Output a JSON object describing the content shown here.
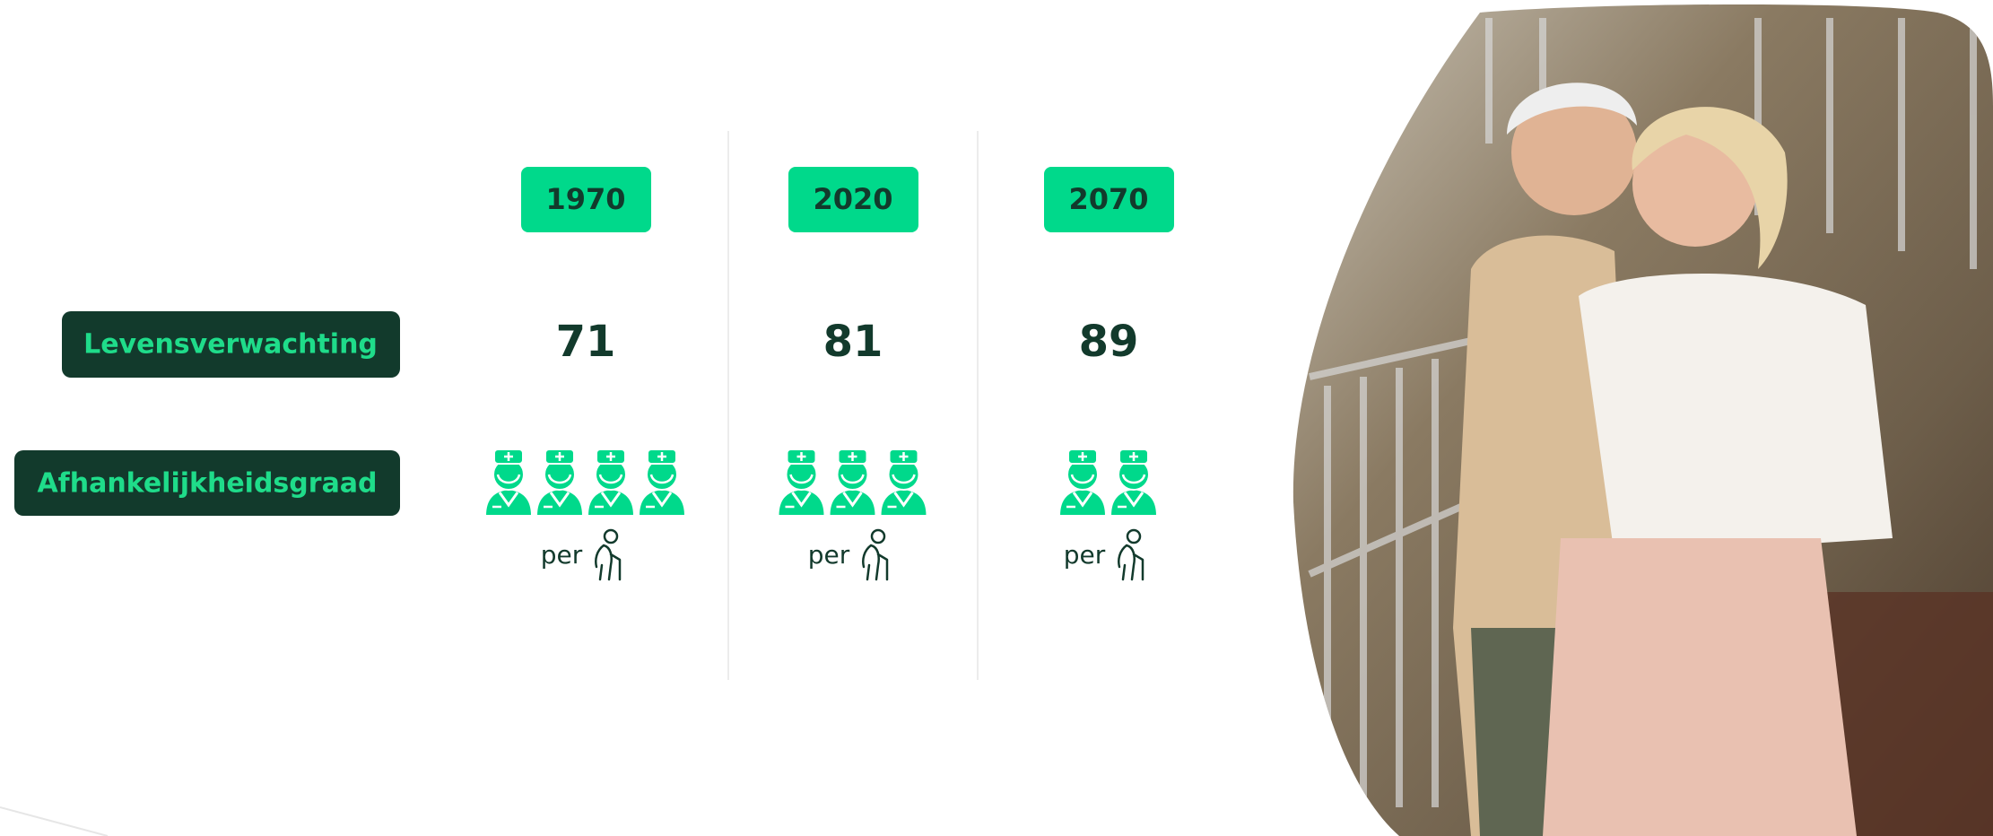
{
  "rows": {
    "life_expectancy": "Levensverwachting",
    "dependency": "Afhankelijkheidsgraad"
  },
  "per_label": "per",
  "columns": [
    {
      "year": "1970",
      "life_expectancy": 71,
      "caregivers": 4
    },
    {
      "year": "2020",
      "life_expectancy": 81,
      "caregivers": 3
    },
    {
      "year": "2070",
      "life_expectancy": 89,
      "caregivers": 2
    }
  ]
}
